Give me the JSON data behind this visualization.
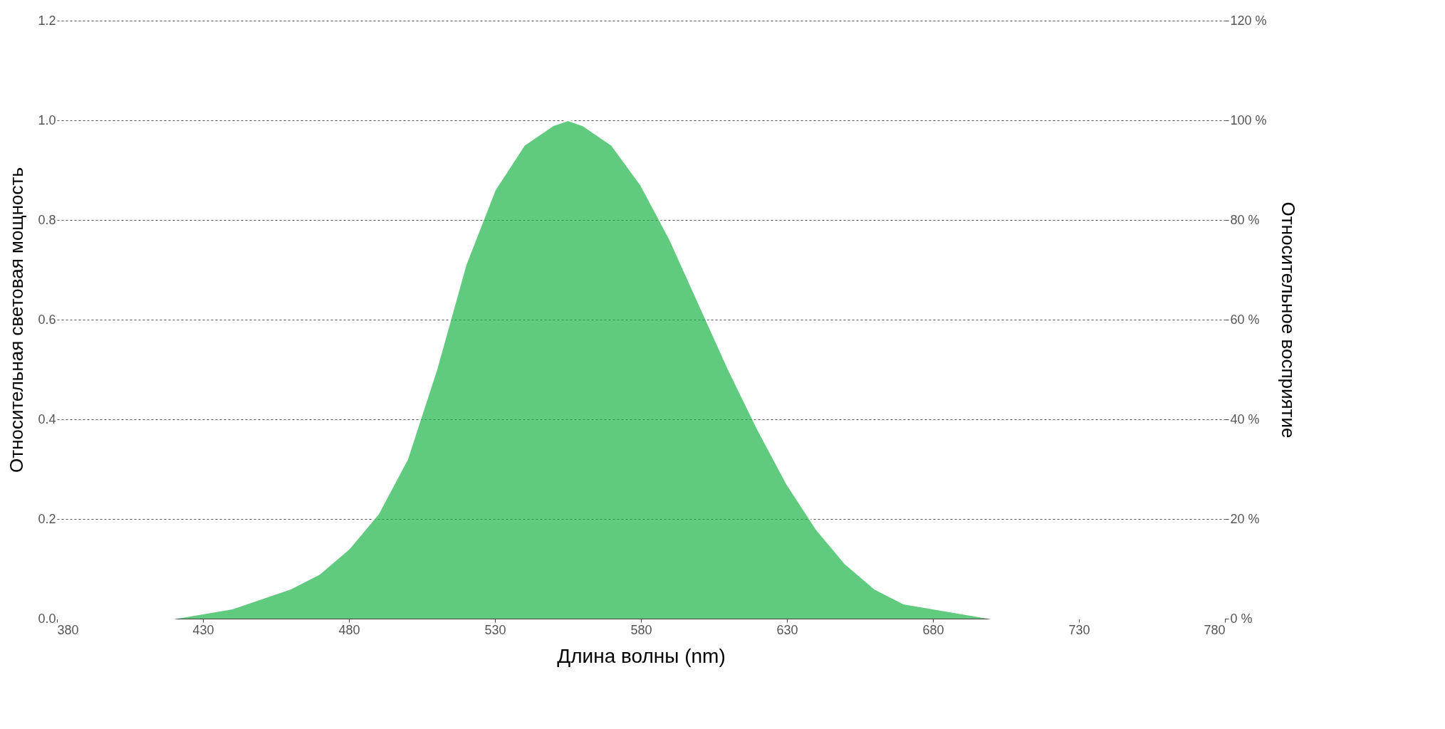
{
  "chart_data": {
    "type": "area",
    "xlabel": "Длина волны (nm)",
    "ylabel": "Относительная световая мощность",
    "y2label": "Относительное восприятие",
    "x": [
      380,
      390,
      400,
      410,
      420,
      430,
      440,
      450,
      460,
      470,
      480,
      490,
      500,
      510,
      520,
      530,
      540,
      550,
      555,
      560,
      570,
      580,
      590,
      600,
      610,
      620,
      630,
      640,
      650,
      660,
      670,
      680,
      690,
      700,
      710,
      720,
      730,
      740,
      750,
      760,
      770,
      780
    ],
    "series": [
      {
        "color": "#1cb548",
        "values": [
          0.0,
          0.0,
          0.0,
          0.0,
          0.0,
          0.01,
          0.02,
          0.04,
          0.06,
          0.09,
          0.14,
          0.21,
          0.32,
          0.5,
          0.71,
          0.86,
          0.95,
          0.99,
          1.0,
          0.99,
          0.95,
          0.87,
          0.76,
          0.63,
          0.5,
          0.38,
          0.27,
          0.18,
          0.11,
          0.06,
          0.03,
          0.02,
          0.01,
          0.0,
          0.0,
          0.0,
          0.0,
          0.0,
          0.0,
          0.0,
          0.0,
          0.0
        ]
      }
    ],
    "xlim": [
      380,
      780
    ],
    "xticks": [
      380,
      430,
      480,
      530,
      580,
      630,
      680,
      730,
      780
    ],
    "ylim": [
      0,
      1.2
    ],
    "yticks": [
      {
        "value": 0,
        "label": "0.0"
      },
      0.2,
      0.4,
      0.6,
      0.8,
      {
        "value": 1,
        "label": "1.0"
      },
      {
        "value": 1.2,
        "label": "1.2"
      }
    ],
    "y2lim": [
      0,
      120
    ],
    "y2ticks": [
      {
        "value": 0,
        "label": "0 %"
      },
      {
        "value": 20,
        "label": "20 %"
      },
      {
        "value": 40,
        "label": "40 %"
      },
      {
        "value": 60,
        "label": "60 %"
      },
      {
        "value": 80,
        "label": "80 %"
      },
      {
        "value": 100,
        "label": "100 %"
      },
      {
        "value": 120,
        "label": "120 %"
      }
    ],
    "grid": "y"
  }
}
